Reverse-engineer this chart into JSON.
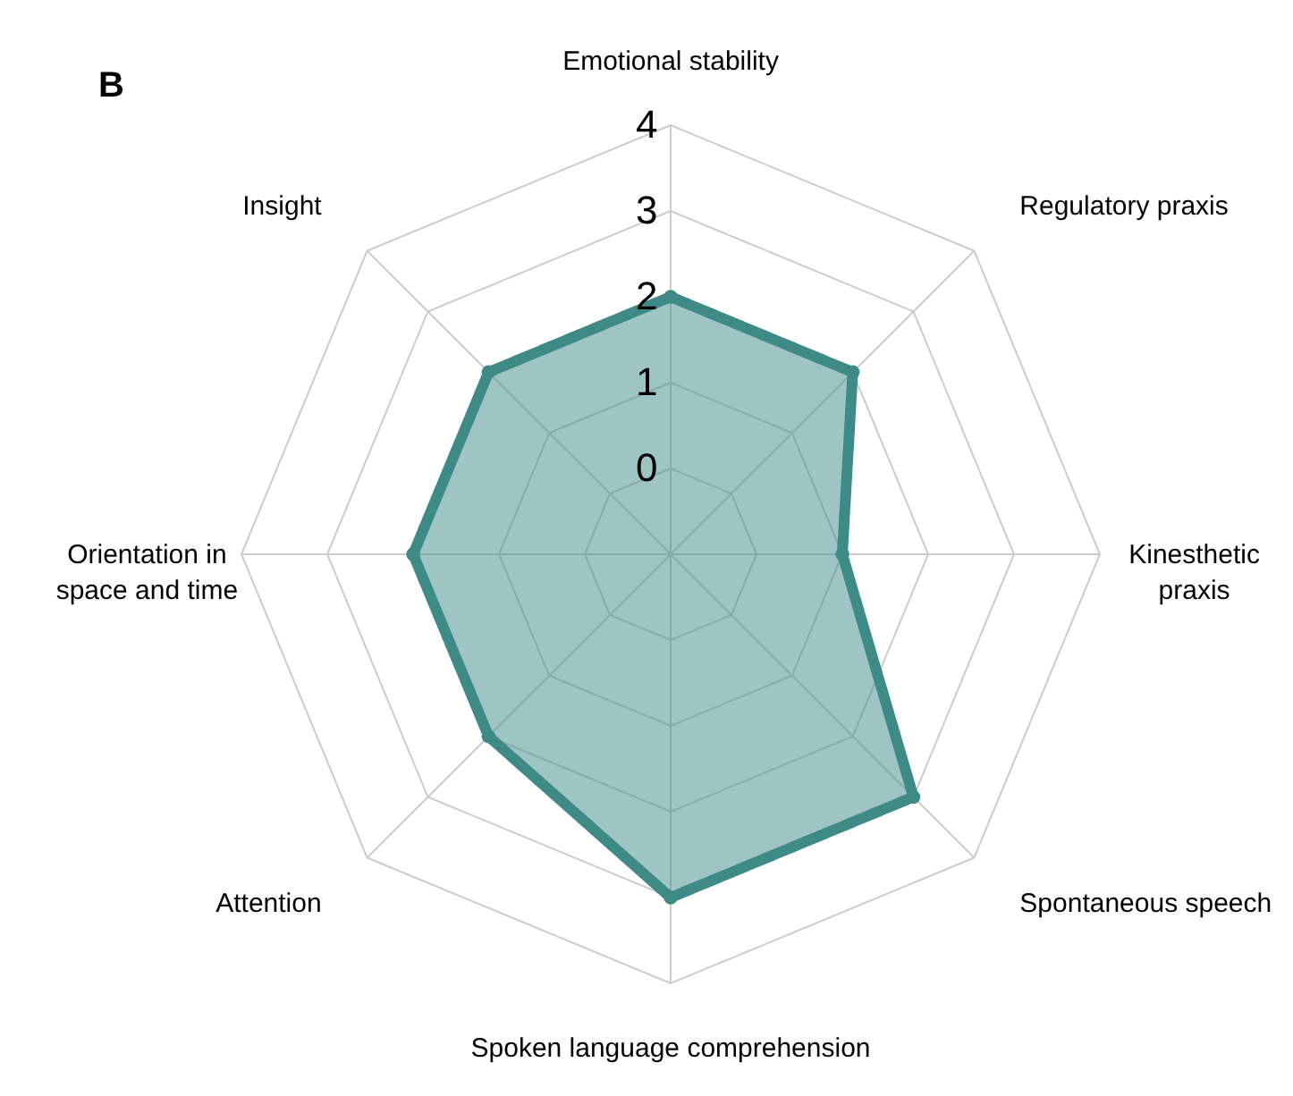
{
  "chart_data": {
    "type": "radar",
    "title": "B",
    "categories": [
      "Emotional stability",
      "Regulatory praxis",
      "Kinesthetic praxis",
      "Spontaneous speech",
      "Spoken language comprehension",
      "Attention",
      "Orientation in space and time",
      "Insight"
    ],
    "series": [
      {
        "color": "#3d8a87",
        "values": [
          2,
          2,
          1,
          3,
          3,
          2,
          2,
          2
        ]
      }
    ],
    "ylim": [
      -1,
      4
    ],
    "yticks": [
      0,
      1,
      2,
      3,
      4
    ],
    "grid": true,
    "marker": "circle",
    "line_style": "solid"
  }
}
